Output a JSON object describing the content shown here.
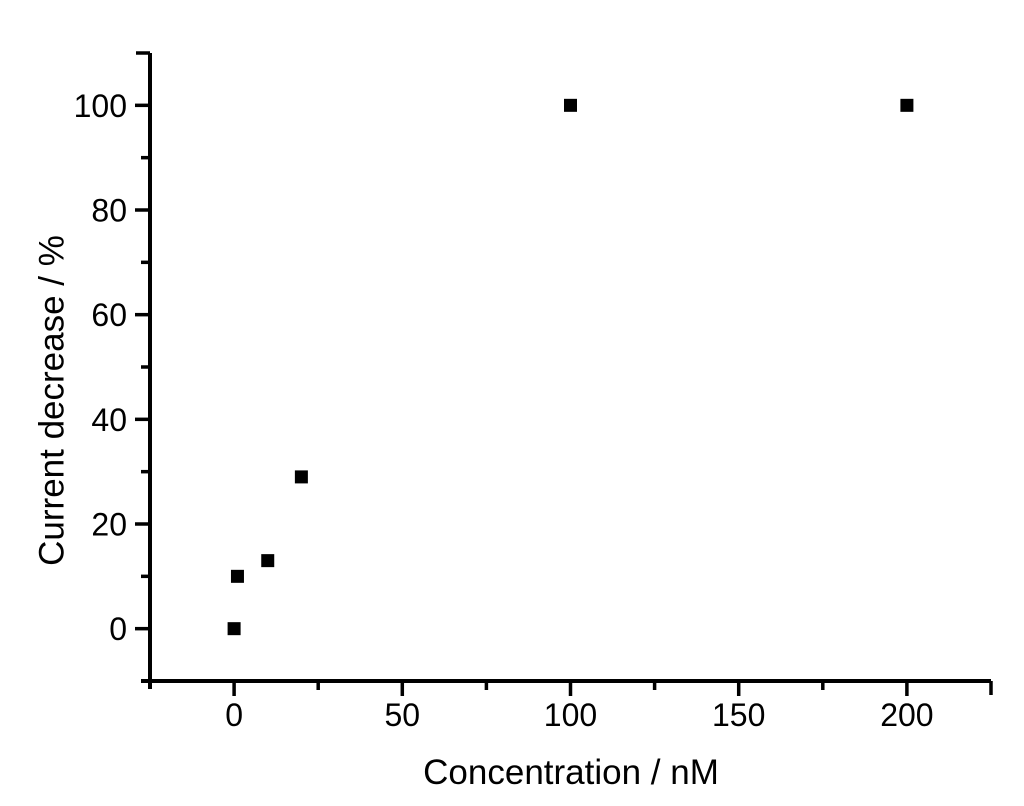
{
  "figure": {
    "background_color": "#ffffff",
    "foreground_color": "#000000"
  },
  "chart_data": {
    "type": "scatter",
    "title": "",
    "xlabel": "Concentration / nM",
    "ylabel": "Current decrease / %",
    "points": [
      {
        "x": 0,
        "y": 0
      },
      {
        "x": 1,
        "y": 10
      },
      {
        "x": 10,
        "y": 13
      },
      {
        "x": 20,
        "y": 29
      },
      {
        "x": 100,
        "y": 100
      },
      {
        "x": 200,
        "y": 100
      }
    ],
    "xlim": [
      -25,
      225
    ],
    "ylim": [
      -10,
      110
    ],
    "x_major_ticks": [
      0,
      50,
      100,
      150,
      200
    ],
    "x_minor_ticks": [
      25,
      75,
      125,
      175
    ],
    "y_major_ticks": [
      0,
      20,
      40,
      60,
      80,
      100
    ],
    "y_minor_ticks": [
      10,
      30,
      50,
      70,
      90
    ],
    "marker": {
      "shape": "square",
      "size": 13,
      "color": "#000000"
    },
    "grid": false,
    "legend": null
  }
}
